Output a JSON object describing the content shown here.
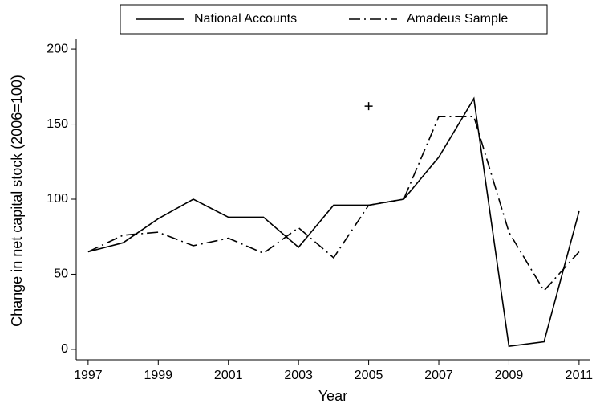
{
  "chart_data": {
    "type": "line",
    "x_label": "Year",
    "y_label": "Change in net capital stock (2006=100)",
    "x": [
      1997,
      1998,
      1999,
      2000,
      2001,
      2002,
      2003,
      2004,
      2005,
      2006,
      2007,
      2008,
      2009,
      2010,
      2011
    ],
    "series": [
      {
        "name": "National Accounts",
        "color": "#000000",
        "dash": "solid",
        "values": [
          65,
          71,
          87,
          100,
          88,
          88,
          68,
          96,
          96,
          100,
          128,
          167,
          2,
          5,
          92
        ]
      },
      {
        "name": "Amadeus Sample",
        "color": "#000000",
        "dash": "dashdot",
        "values": [
          65,
          76,
          78,
          69,
          74,
          64,
          81,
          61,
          96,
          100,
          155,
          155,
          78,
          39,
          65
        ]
      }
    ],
    "points": [
      {
        "x": 2005,
        "y": 162
      }
    ],
    "xlim": [
      1996.66,
      2011.3
    ],
    "ylim": [
      -7,
      207
    ],
    "xticks": [
      1997,
      1999,
      2001,
      2003,
      2005,
      2007,
      2009,
      2011
    ],
    "yticks": [
      0,
      50,
      100,
      150,
      200
    ],
    "grid": false,
    "legend": "top"
  }
}
